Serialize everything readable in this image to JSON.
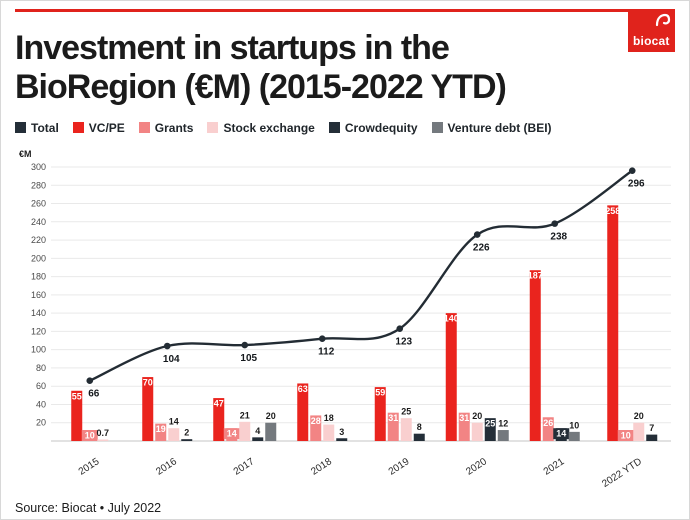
{
  "header": {
    "title_line1": "Investment in startups in the",
    "title_line2": "BioRegion (€M) (2015-2022 YTD)",
    "logo_text": "biocat",
    "accent_color": "#e0231c"
  },
  "footer": {
    "source": "Source: Biocat • July 2022"
  },
  "chart_data": {
    "type": "bar",
    "title": "Investment in startups in the BioRegion (€M) (2015-2022 YTD)",
    "ylabel": "€M",
    "xlabel": "",
    "ylim": [
      0,
      300
    ],
    "ytick_step": 20,
    "yticks": [
      20,
      40,
      60,
      80,
      100,
      120,
      140,
      160,
      180,
      200,
      220,
      240,
      260,
      280,
      300
    ],
    "grid": "horizontal",
    "legend_position": "top",
    "categories": [
      "2015",
      "2016",
      "2017",
      "2018",
      "2019",
      "2020",
      "2021",
      "2022 YTD"
    ],
    "legend": [
      {
        "id": "total",
        "label": "Total",
        "color": "#242e38"
      },
      {
        "id": "vcpe",
        "label": "VC/PE",
        "color": "#ea241e"
      },
      {
        "id": "grants",
        "label": "Grants",
        "color": "#f28484"
      },
      {
        "id": "stock_exchange",
        "label": "Stock exchange",
        "color": "#f9cfcf"
      },
      {
        "id": "crowdequity",
        "label": "Crowdequity",
        "color": "#242e38"
      },
      {
        "id": "venture_debt",
        "label": "Venture debt (BEI)",
        "color": "#74797e"
      }
    ],
    "series": [
      {
        "id": "vcpe",
        "name": "VC/PE",
        "color": "#ea241e",
        "values": [
          55,
          70,
          47,
          63,
          59,
          140,
          187,
          258
        ]
      },
      {
        "id": "grants",
        "name": "Grants",
        "color": "#f28484",
        "values": [
          10,
          19,
          14,
          28,
          31,
          31,
          26,
          10
        ]
      },
      {
        "id": "stock_exchange",
        "name": "Stock exchange",
        "color": "#f9cfcf",
        "values": [
          0.7,
          14,
          21,
          18,
          25,
          20,
          null,
          20
        ]
      },
      {
        "id": "crowdequity",
        "name": "Crowdequity",
        "color": "#242e38",
        "values": [
          null,
          2,
          4,
          3,
          8,
          25,
          14,
          7
        ]
      },
      {
        "id": "venture_debt",
        "name": "Venture debt (BEI)",
        "color": "#74797e",
        "values": [
          null,
          null,
          20,
          null,
          null,
          12,
          10,
          null
        ]
      }
    ],
    "line": {
      "name": "Total",
      "color": "#232c34",
      "values": [
        66,
        104,
        105,
        112,
        123,
        226,
        238,
        296
      ]
    }
  }
}
